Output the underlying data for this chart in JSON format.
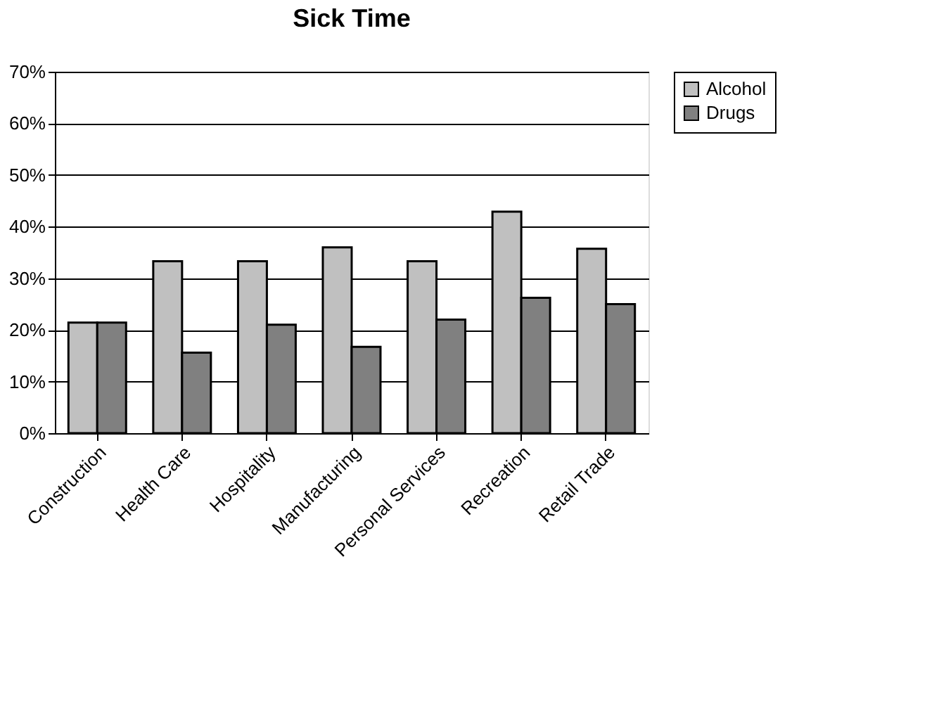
{
  "chart_data": {
    "type": "bar",
    "title": "Sick Time",
    "categories": [
      "Construction",
      "Health Care",
      "Hospitality",
      "Manufacturing",
      "Personal Services",
      "Recreation",
      "Retail Trade"
    ],
    "series": [
      {
        "name": "Alcohol",
        "color": "#c0c0c0",
        "values": [
          0.214,
          0.333,
          0.333,
          0.36,
          0.333,
          0.429,
          0.357
        ]
      },
      {
        "name": "Drugs",
        "color": "#808080",
        "values": [
          0.214,
          0.156,
          0.21,
          0.167,
          0.22,
          0.262,
          0.25
        ]
      }
    ],
    "ylim": [
      0,
      0.7
    ],
    "yticks": [
      {
        "value": 0,
        "label": "0%"
      },
      {
        "value": 0.1,
        "label": "10%"
      },
      {
        "value": 0.2,
        "label": "20%"
      },
      {
        "value": 0.3,
        "label": "30%"
      },
      {
        "value": 0.4,
        "label": "40%"
      },
      {
        "value": 0.5,
        "label": "50%"
      },
      {
        "value": 0.6,
        "label": "60%"
      },
      {
        "value": 0.7,
        "label": "70%"
      }
    ],
    "grid": "y",
    "legend": "right"
  }
}
